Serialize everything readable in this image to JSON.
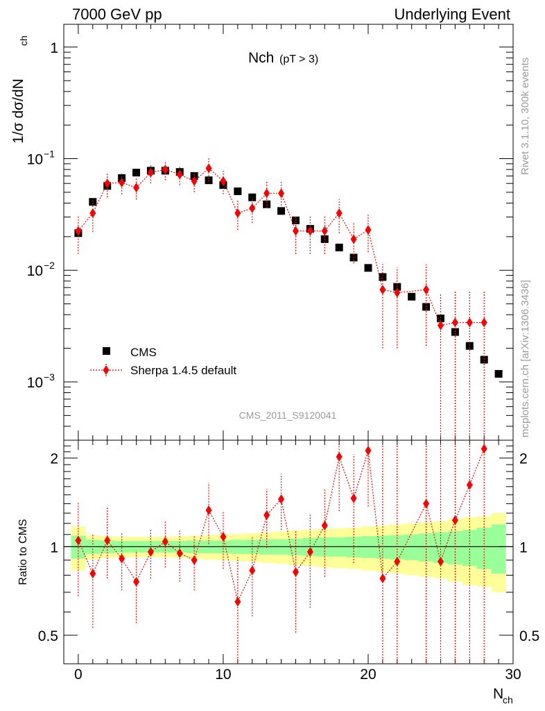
{
  "header": {
    "left": "7000 GeV pp",
    "right": "Underlying Event"
  },
  "side_labels": {
    "rivet": "Rivet 3.1.10,  300k events",
    "mcplots": "mcplots.cern.ch [arXiv:1306.3436]"
  },
  "chart_data": {
    "type": "scatter",
    "title": "Nch",
    "title_sub": "(pT >  3)",
    "watermark": "CMS_2011_S9120041",
    "xlabel": "N",
    "xlabel_sub": "ch",
    "ylabel": "1/σ dσ/dN",
    "ylabel_sub": "ch",
    "xlim": [
      -1,
      30
    ],
    "ylim": [
      0.0003,
      1.6
    ],
    "yscale": "log",
    "x_ticks": [
      0,
      10,
      20,
      30
    ],
    "y_ticks": [
      {
        "value": 1,
        "label": "1"
      },
      {
        "value": 0.1,
        "label": "10",
        "exp": "−1"
      },
      {
        "value": 0.01,
        "label": "10",
        "exp": "−2"
      },
      {
        "value": 0.001,
        "label": "10",
        "exp": "−3"
      }
    ],
    "legend_position": "bottom-left",
    "series": [
      {
        "name": "CMS",
        "color": "#000000",
        "marker": "square",
        "x": [
          0,
          1,
          2,
          3,
          4,
          5,
          6,
          7,
          8,
          9,
          10,
          11,
          12,
          13,
          14,
          15,
          16,
          17,
          18,
          19,
          20,
          21,
          22,
          23,
          24,
          25,
          26,
          27,
          28,
          29
        ],
        "y": [
          0.0215,
          0.041,
          0.057,
          0.067,
          0.075,
          0.078,
          0.078,
          0.076,
          0.07,
          0.064,
          0.058,
          0.051,
          0.045,
          0.039,
          0.034,
          0.028,
          0.0235,
          0.019,
          0.016,
          0.013,
          0.0105,
          0.0087,
          0.0071,
          0.0058,
          0.0047,
          0.0037,
          0.0028,
          0.0021,
          0.00158,
          0.00118
        ]
      },
      {
        "name": "Sherpa 1.4.5 default",
        "color": "#ff0000",
        "marker": "diamond",
        "line": "dotted",
        "x": [
          0,
          1,
          2,
          3,
          4,
          5,
          6,
          7,
          8,
          9,
          10,
          11,
          12,
          13,
          14,
          15,
          16,
          17,
          18,
          19,
          20,
          21,
          22,
          24,
          25,
          26,
          27,
          28
        ],
        "y": [
          0.0225,
          0.0325,
          0.06,
          0.061,
          0.055,
          0.075,
          0.08,
          0.072,
          0.063,
          0.082,
          0.063,
          0.0325,
          0.036,
          0.049,
          0.049,
          0.0225,
          0.0225,
          0.0225,
          0.0325,
          0.019,
          0.023,
          0.0067,
          0.0063,
          0.0067,
          0.0032,
          0.0034,
          0.0034,
          0.0034
        ],
        "err_lo": [
          0.0085,
          0.0105,
          0.015,
          0.013,
          0.012,
          0.015,
          0.016,
          0.014,
          0.013,
          0.02,
          0.015,
          0.0095,
          0.0095,
          0.013,
          0.013,
          0.0085,
          0.0085,
          0.0085,
          0.011,
          0.0075,
          0.0085,
          0.0047,
          0.0043,
          0.0046,
          0.003,
          0.0032,
          0.0032,
          0.0032
        ],
        "err_hi": [
          0.0085,
          0.0105,
          0.015,
          0.013,
          0.012,
          0.015,
          0.016,
          0.014,
          0.013,
          0.02,
          0.015,
          0.0095,
          0.0095,
          0.013,
          0.013,
          0.0085,
          0.0085,
          0.0085,
          0.011,
          0.0075,
          0.0085,
          0.0047,
          0.0043,
          0.0046,
          0.003,
          0.0032,
          0.0032,
          0.0032
        ]
      }
    ],
    "ratio": {
      "ylabel": "Ratio to CMS",
      "ylim": [
        0.4,
        2.3
      ],
      "yscale": "log",
      "y_ticks": [
        {
          "value": 0.5,
          "label": "0.5"
        },
        {
          "value": 1,
          "label": "1"
        },
        {
          "value": 2,
          "label": "2"
        }
      ],
      "band_inner_color": "#99ff99",
      "band_outer_color": "#ffff99",
      "x": [
        0,
        1,
        2,
        3,
        4,
        5,
        6,
        7,
        8,
        9,
        10,
        11,
        12,
        13,
        14,
        15,
        16,
        17,
        18,
        19,
        20,
        21,
        22,
        23,
        24,
        25,
        26,
        27,
        28,
        29
      ],
      "band_inner": [
        0.09,
        0.055,
        0.05,
        0.045,
        0.045,
        0.045,
        0.045,
        0.045,
        0.05,
        0.05,
        0.05,
        0.055,
        0.055,
        0.06,
        0.06,
        0.065,
        0.07,
        0.075,
        0.075,
        0.08,
        0.085,
        0.09,
        0.095,
        0.1,
        0.11,
        0.12,
        0.13,
        0.14,
        0.16,
        0.19
      ],
      "band_outer": [
        0.17,
        0.095,
        0.085,
        0.08,
        0.08,
        0.08,
        0.08,
        0.085,
        0.09,
        0.095,
        0.1,
        0.105,
        0.11,
        0.12,
        0.125,
        0.135,
        0.14,
        0.15,
        0.155,
        0.16,
        0.17,
        0.18,
        0.19,
        0.2,
        0.21,
        0.22,
        0.24,
        0.26,
        0.27,
        0.3
      ],
      "series": {
        "name": "Sherpa 1.4.5 default",
        "x": [
          0,
          1,
          2,
          3,
          4,
          5,
          6,
          7,
          8,
          9,
          10,
          11,
          12,
          13,
          14,
          15,
          16,
          17,
          18,
          19,
          20,
          21,
          22,
          24,
          25,
          26,
          27,
          28
        ],
        "y": [
          1.05,
          0.81,
          1.05,
          0.91,
          0.76,
          0.96,
          1.04,
          0.95,
          0.9,
          1.33,
          1.08,
          0.65,
          0.83,
          1.28,
          1.45,
          0.82,
          0.96,
          1.18,
          2.02,
          1.46,
          2.12,
          0.78,
          0.89,
          1.4,
          0.89,
          1.23,
          1.62,
          2.15
        ],
        "lo": [
          0.68,
          0.53,
          0.78,
          0.71,
          0.55,
          0.78,
          0.85,
          0.76,
          0.71,
          1.02,
          0.84,
          0.38,
          0.58,
          0.99,
          1.14,
          0.51,
          0.62,
          0.79,
          1.32,
          0.88,
          1.37,
          0.2,
          0.22,
          0.4,
          0.2,
          0.2,
          0.2,
          0.2
        ],
        "hi": [
          1.42,
          1.11,
          1.36,
          1.12,
          0.97,
          1.14,
          1.23,
          1.14,
          1.09,
          1.65,
          1.32,
          0.92,
          1.09,
          1.57,
          1.77,
          1.14,
          1.3,
          1.57,
          2.24,
          2.06,
          2.24,
          2.24,
          2.24,
          2.24,
          2.24,
          2.24,
          2.24,
          2.24
        ]
      }
    }
  }
}
